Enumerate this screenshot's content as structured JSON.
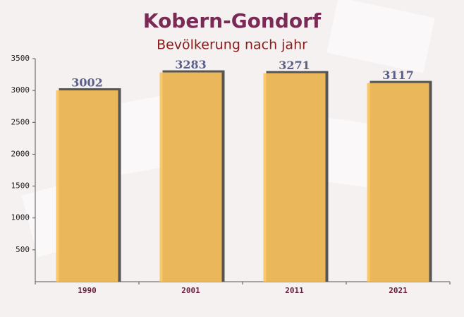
{
  "chart_data": {
    "type": "bar",
    "title": "Kobern-Gondorf",
    "subtitle": "Bevölkerung nach jahr",
    "categories": [
      "1990",
      "2001",
      "2011",
      "2021"
    ],
    "values": [
      3002,
      3283,
      3271,
      3117
    ],
    "color": "#fbc35c",
    "ylim": [
      0,
      3500
    ],
    "yticks": [
      500,
      1000,
      1500,
      2000,
      2500,
      3000,
      3500
    ]
  }
}
